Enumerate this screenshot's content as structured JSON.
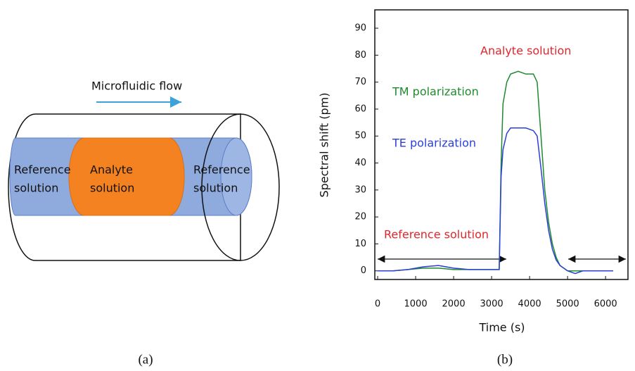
{
  "diagram": {
    "flow_label": "Microfluidic flow",
    "segments": [
      {
        "lines": [
          "Reference",
          "solution"
        ]
      },
      {
        "lines": [
          "Analyte",
          "solution"
        ]
      },
      {
        "lines": [
          "Reference",
          "solution"
        ]
      }
    ],
    "caption": "(a)"
  },
  "chart_data": {
    "type": "line",
    "caption": "(b)",
    "x_label": "Time (s)",
    "y_label": "Spectral shift (pm)",
    "x": [
      0,
      400,
      800,
      1200,
      1600,
      2000,
      2400,
      2800,
      3200,
      3250,
      3300,
      3400,
      3500,
      3700,
      3900,
      4100,
      4200,
      4300,
      4400,
      4500,
      4600,
      4700,
      4800,
      5000,
      5200,
      5400,
      5800,
      6200
    ],
    "series": [
      {
        "name": "TM polarization",
        "color": "#1e8a2e",
        "values": [
          0,
          0,
          0.5,
          1,
          1,
          0.5,
          0.5,
          0.5,
          0.5,
          40,
          62,
          70,
          73,
          74,
          73,
          73,
          70,
          50,
          30,
          18,
          10,
          5,
          2,
          0,
          0,
          0,
          0,
          0
        ]
      },
      {
        "name": "TE polarization",
        "color": "#2a3fd6",
        "values": [
          0,
          0,
          0.5,
          1.5,
          2,
          1,
          0.5,
          0.5,
          0.5,
          35,
          45,
          51,
          53,
          53,
          53,
          52,
          50,
          38,
          25,
          15,
          8,
          4,
          2,
          0,
          -1,
          0,
          0,
          0
        ]
      }
    ],
    "annotations": [
      {
        "text": "Analyte solution",
        "color": "#e0262b"
      },
      {
        "text": "Reference solution",
        "color": "#e0262b"
      }
    ],
    "xlim": [
      -75,
      6590
    ],
    "ylim": [
      -3.2,
      96.8
    ],
    "xticks": [
      0,
      1000,
      2000,
      3000,
      4000,
      5000,
      6000
    ],
    "yticks": [
      0,
      10,
      20,
      30,
      40,
      50,
      60,
      70,
      80,
      90
    ]
  }
}
